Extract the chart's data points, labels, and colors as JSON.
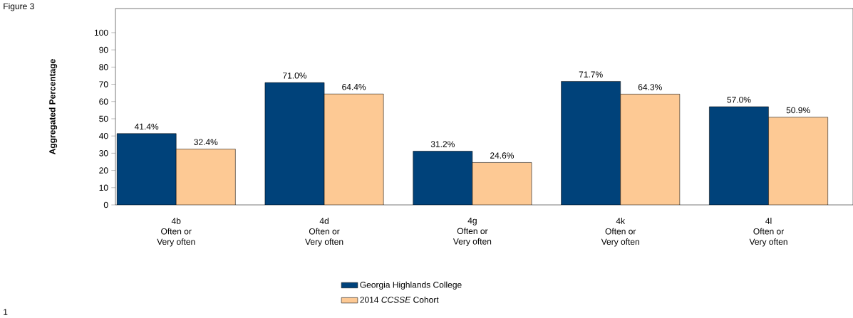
{
  "chart_data": {
    "type": "bar",
    "ylabel": "Aggregated Percentage",
    "annotations": [
      "Figure 3",
      "1"
    ],
    "categories": [
      "4b\nOften or\nVery often",
      "4d\nOften or\nVery often",
      "4g\nOften or\nVery often",
      "4k\nOften or\nVery often",
      "4l\nOften or\nVery often"
    ],
    "series": [
      {
        "name": "Georgia Highlands College",
        "color": "#00427a",
        "values": [
          41.4,
          71.0,
          31.2,
          71.7,
          57.0
        ],
        "value_labels": [
          "41.4%",
          "71.0%",
          "31.2%",
          "71.7%",
          "57.0%"
        ]
      },
      {
        "name": "2014 *CCSSE* Cohort",
        "color": "#fdc994",
        "values": [
          32.4,
          64.4,
          24.6,
          64.3,
          50.9
        ],
        "value_labels": [
          "32.4%",
          "64.4%",
          "24.6%",
          "64.3%",
          "50.9%"
        ]
      }
    ],
    "ylim": [
      0,
      114
    ],
    "yticks": [
      0,
      10,
      20,
      30,
      40,
      50,
      60,
      70,
      80,
      90,
      100
    ],
    "grid": false,
    "legend": "bottom"
  }
}
